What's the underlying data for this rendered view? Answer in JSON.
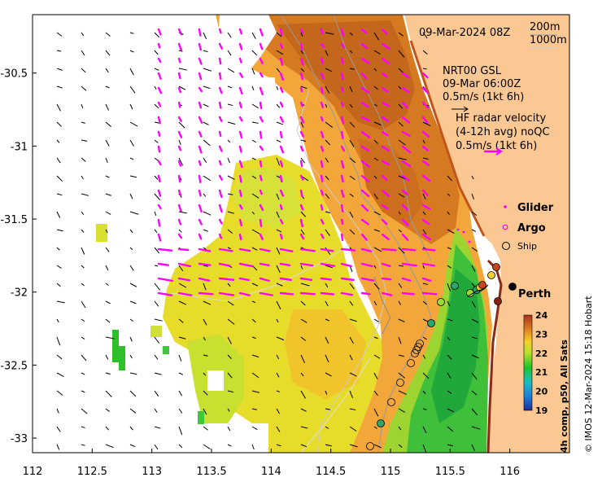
{
  "map": {
    "timestamp": "09-Mar-2024 08Z",
    "contours": [
      "200m",
      "1000m"
    ],
    "lon_ticks": [
      "112",
      "112.5",
      "113",
      "113.5",
      "114",
      "114.5",
      "115",
      "115.5",
      "116"
    ],
    "lat_ticks": [
      "-30.5",
      "-31",
      "-31.5",
      "-32",
      "-32.5",
      "-33"
    ],
    "lon_range": [
      112,
      116.5
    ],
    "lat_range": [
      -33.1,
      -30.1
    ],
    "model_legend": {
      "line1": "NRT00 GSL",
      "line2": "09-Mar 06:00Z",
      "line3": "0.5m/s (1kt 6h)"
    },
    "radar_legend": {
      "line1": "HF radar velocity",
      "line2": "(4-12h avg) noQC",
      "line3": "0.5m/s (1kt 6h)"
    },
    "symbols_legend": {
      "glider": "Glider",
      "argo": "Argo",
      "ship": "Ship"
    },
    "city": "Perth",
    "colorbar": {
      "ticks": [
        "24",
        "23",
        "22",
        "21",
        "20",
        "19"
      ],
      "label": "4h comp, p50, All Sats",
      "range": [
        19,
        24
      ]
    },
    "credit": "© IMOS 12-Mar-2024 15:18 Hobart",
    "colors": {
      "land": "#fbc894",
      "vector_model": "#000000",
      "vector_radar": "#ff00ff",
      "missing": "#ffffff"
    }
  }
}
